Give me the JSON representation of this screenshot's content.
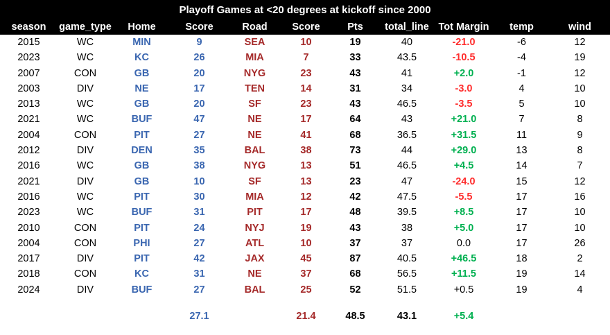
{
  "title": "Playoff Games at <20 degrees at kickoff since 2000",
  "columns": [
    "season",
    "game_type",
    "Home",
    "Score",
    "Road",
    "Score",
    "Pts",
    "total_line",
    "Tot Margin",
    "temp",
    "wind"
  ],
  "rows": [
    {
      "season": "2015",
      "game_type": "WC",
      "home": "MIN",
      "home_score": "9",
      "road": "SEA",
      "road_score": "10",
      "pts": "19",
      "total_line": "40",
      "tot_margin": "-21.0",
      "margin_sign": "neg",
      "temp": "-6",
      "wind": "12"
    },
    {
      "season": "2023",
      "game_type": "WC",
      "home": "KC",
      "home_score": "26",
      "road": "MIA",
      "road_score": "7",
      "pts": "33",
      "total_line": "43.5",
      "tot_margin": "-10.5",
      "margin_sign": "neg",
      "temp": "-4",
      "wind": "19"
    },
    {
      "season": "2007",
      "game_type": "CON",
      "home": "GB",
      "home_score": "20",
      "road": "NYG",
      "road_score": "23",
      "pts": "43",
      "total_line": "41",
      "tot_margin": "+2.0",
      "margin_sign": "pos",
      "temp": "-1",
      "wind": "12"
    },
    {
      "season": "2003",
      "game_type": "DIV",
      "home": "NE",
      "home_score": "17",
      "road": "TEN",
      "road_score": "14",
      "pts": "31",
      "total_line": "34",
      "tot_margin": "-3.0",
      "margin_sign": "neg",
      "temp": "4",
      "wind": "10"
    },
    {
      "season": "2013",
      "game_type": "WC",
      "home": "GB",
      "home_score": "20",
      "road": "SF",
      "road_score": "23",
      "pts": "43",
      "total_line": "46.5",
      "tot_margin": "-3.5",
      "margin_sign": "neg",
      "temp": "5",
      "wind": "10"
    },
    {
      "season": "2021",
      "game_type": "WC",
      "home": "BUF",
      "home_score": "47",
      "road": "NE",
      "road_score": "17",
      "pts": "64",
      "total_line": "43",
      "tot_margin": "+21.0",
      "margin_sign": "pos",
      "temp": "7",
      "wind": "8"
    },
    {
      "season": "2004",
      "game_type": "CON",
      "home": "PIT",
      "home_score": "27",
      "road": "NE",
      "road_score": "41",
      "pts": "68",
      "total_line": "36.5",
      "tot_margin": "+31.5",
      "margin_sign": "pos",
      "temp": "11",
      "wind": "9"
    },
    {
      "season": "2012",
      "game_type": "DIV",
      "home": "DEN",
      "home_score": "35",
      "road": "BAL",
      "road_score": "38",
      "pts": "73",
      "total_line": "44",
      "tot_margin": "+29.0",
      "margin_sign": "pos",
      "temp": "13",
      "wind": "8"
    },
    {
      "season": "2016",
      "game_type": "WC",
      "home": "GB",
      "home_score": "38",
      "road": "NYG",
      "road_score": "13",
      "pts": "51",
      "total_line": "46.5",
      "tot_margin": "+4.5",
      "margin_sign": "pos",
      "temp": "14",
      "wind": "7"
    },
    {
      "season": "2021",
      "game_type": "DIV",
      "home": "GB",
      "home_score": "10",
      "road": "SF",
      "road_score": "13",
      "pts": "23",
      "total_line": "47",
      "tot_margin": "-24.0",
      "margin_sign": "neg",
      "temp": "15",
      "wind": "12"
    },
    {
      "season": "2016",
      "game_type": "WC",
      "home": "PIT",
      "home_score": "30",
      "road": "MIA",
      "road_score": "12",
      "pts": "42",
      "total_line": "47.5",
      "tot_margin": "-5.5",
      "margin_sign": "neg",
      "temp": "17",
      "wind": "16"
    },
    {
      "season": "2023",
      "game_type": "WC",
      "home": "BUF",
      "home_score": "31",
      "road": "PIT",
      "road_score": "17",
      "pts": "48",
      "total_line": "39.5",
      "tot_margin": "+8.5",
      "margin_sign": "pos",
      "temp": "17",
      "wind": "10"
    },
    {
      "season": "2010",
      "game_type": "CON",
      "home": "PIT",
      "home_score": "24",
      "road": "NYJ",
      "road_score": "19",
      "pts": "43",
      "total_line": "38",
      "tot_margin": "+5.0",
      "margin_sign": "pos",
      "temp": "17",
      "wind": "10"
    },
    {
      "season": "2004",
      "game_type": "CON",
      "home": "PHI",
      "home_score": "27",
      "road": "ATL",
      "road_score": "10",
      "pts": "37",
      "total_line": "37",
      "tot_margin": "0.0",
      "margin_sign": "neutral",
      "temp": "17",
      "wind": "26"
    },
    {
      "season": "2017",
      "game_type": "DIV",
      "home": "PIT",
      "home_score": "42",
      "road": "JAX",
      "road_score": "45",
      "pts": "87",
      "total_line": "40.5",
      "tot_margin": "+46.5",
      "margin_sign": "pos",
      "temp": "18",
      "wind": "2"
    },
    {
      "season": "2018",
      "game_type": "CON",
      "home": "KC",
      "home_score": "31",
      "road": "NE",
      "road_score": "37",
      "pts": "68",
      "total_line": "56.5",
      "tot_margin": "+11.5",
      "margin_sign": "pos",
      "temp": "19",
      "wind": "14"
    },
    {
      "season": "2024",
      "game_type": "DIV",
      "home": "BUF",
      "home_score": "27",
      "road": "BAL",
      "road_score": "25",
      "pts": "52",
      "total_line": "51.5",
      "tot_margin": "+0.5",
      "margin_sign": "neutral",
      "temp": "19",
      "wind": "4"
    }
  ],
  "summary": {
    "season": "",
    "game_type": "",
    "home": "",
    "home_score": "27.1",
    "road": "",
    "road_score": "21.4",
    "pts": "48.5",
    "total_line": "43.1",
    "tot_margin": "+5.4",
    "margin_sign": "pos",
    "temp": "",
    "wind": ""
  },
  "colors": {
    "header_bg": "#000000",
    "header_text": "#FFFFFF",
    "home_team": "#3A66B0",
    "road_team": "#A52A2A",
    "margin_positive": "#00B050",
    "margin_negative": "#FF2D2D"
  }
}
